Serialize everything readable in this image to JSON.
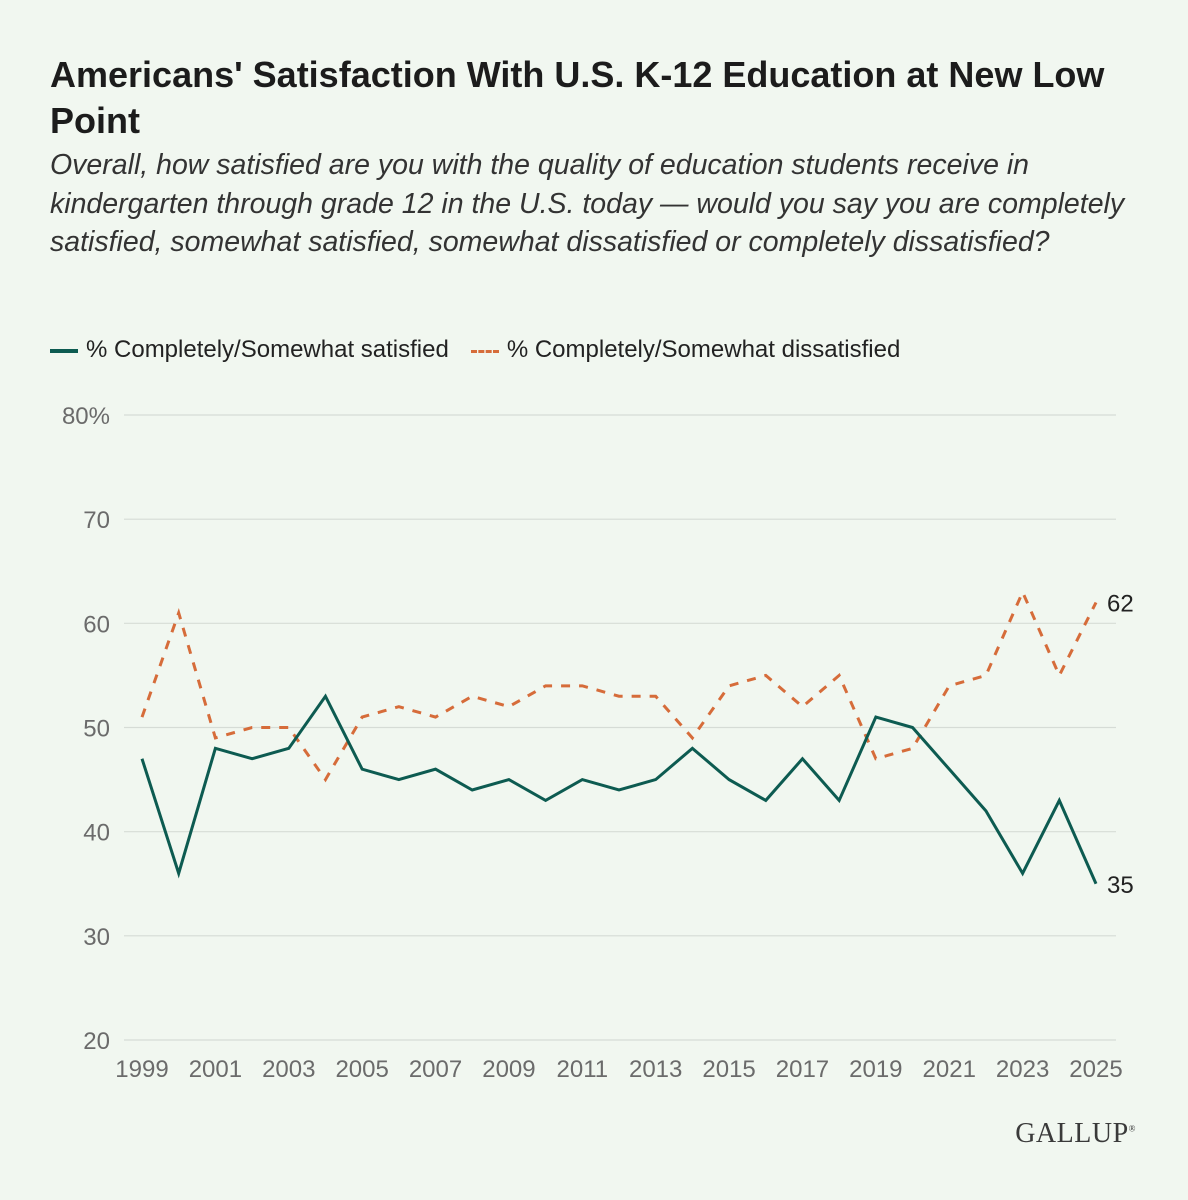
{
  "title": "Americans' Satisfaction With U.S. K-12 Education at New Low Point",
  "subtitle": "Overall, how satisfied are you with the quality of education students receive in kindergarten through grade 12 in the U.S. today — would you say you are completely satisfied, somewhat satisfied, somewhat dissatisfied or completely dissatisfied?",
  "legend": {
    "satisfied": "% Completely/Somewhat satisfied",
    "dissatisfied": "% Completely/Somewhat dissatisfied"
  },
  "logo": "GALLUP",
  "colors": {
    "satisfied": "#0d5b51",
    "dissatisfied": "#d66c3a",
    "grid": "#d6dcd6",
    "tick": "#6b6b6b"
  },
  "chart_data": {
    "type": "line",
    "title": "Americans' Satisfaction With U.S. K-12 Education at New Low Point",
    "xlabel": "",
    "ylabel": "",
    "ylim": [
      20,
      80
    ],
    "yticks": [
      20,
      30,
      40,
      50,
      60,
      70,
      80
    ],
    "ytick_labels": [
      "20",
      "30",
      "40",
      "50",
      "60",
      "70",
      "80%"
    ],
    "xtick_labels": [
      "1999",
      "2001",
      "2003",
      "2005",
      "2007",
      "2009",
      "2011",
      "2013",
      "2015",
      "2017",
      "2019",
      "2021",
      "2023",
      "2025"
    ],
    "x": [
      1999,
      2000,
      2001,
      2002,
      2003,
      2004,
      2005,
      2006,
      2007,
      2008,
      2009,
      2010,
      2011,
      2012,
      2013,
      2014,
      2015,
      2016,
      2017,
      2018,
      2019,
      2020,
      2021,
      2022,
      2023,
      2024,
      2025
    ],
    "series": [
      {
        "name": "% Completely/Somewhat satisfied",
        "key": "satisfied",
        "style": "solid",
        "values": [
          47,
          36,
          48,
          47,
          48,
          53,
          46,
          45,
          46,
          44,
          45,
          43,
          45,
          44,
          45,
          48,
          45,
          43,
          47,
          43,
          51,
          50,
          46,
          42,
          36,
          43,
          35
        ],
        "end_label": "35"
      },
      {
        "name": "% Completely/Somewhat dissatisfied",
        "key": "dissatisfied",
        "style": "dashed",
        "values": [
          51,
          61,
          49,
          50,
          50,
          45,
          51,
          52,
          51,
          53,
          52,
          54,
          54,
          53,
          53,
          49,
          54,
          55,
          52,
          55,
          47,
          48,
          54,
          55,
          63,
          55,
          62
        ],
        "end_label": "62"
      }
    ],
    "grid": true,
    "legend_position": "top-left"
  }
}
